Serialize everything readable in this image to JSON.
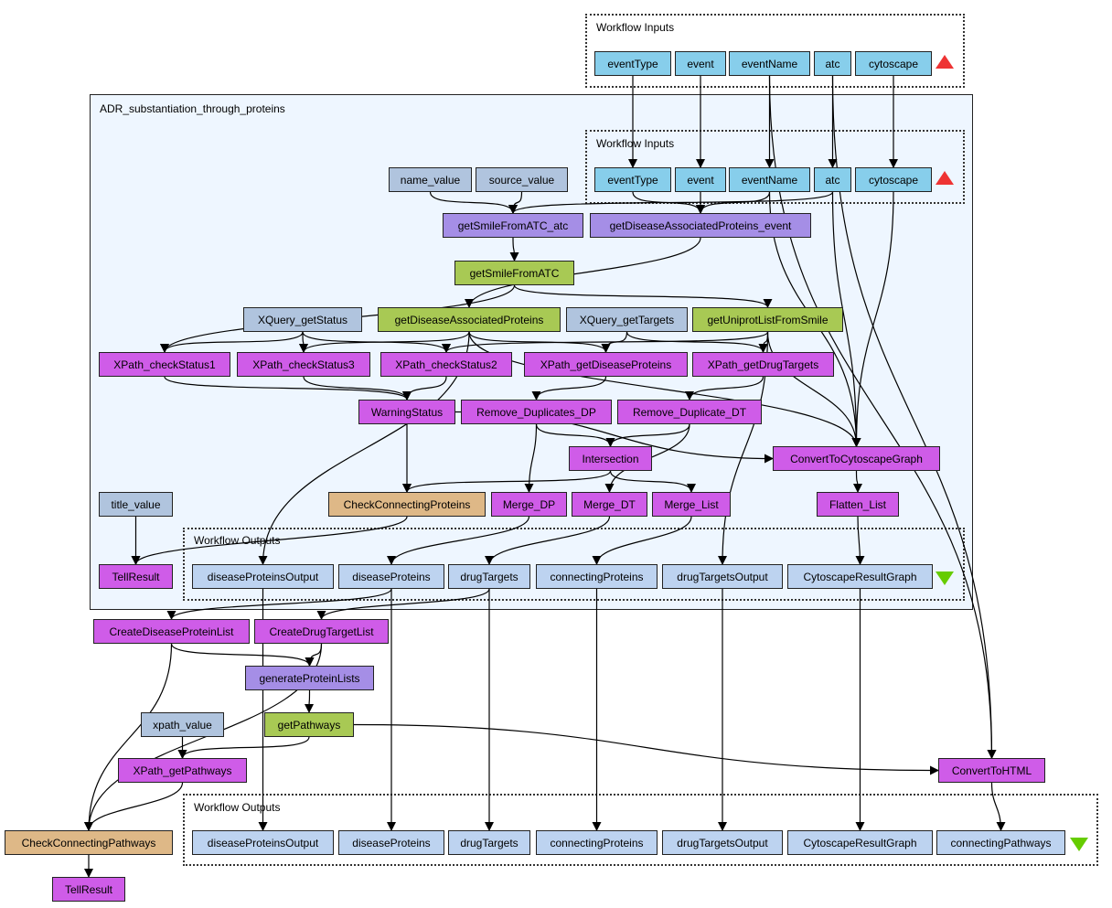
{
  "colors": {
    "processor": "#cf5ce8",
    "beanshell": "#a8c954",
    "purple": "#a58ee6",
    "constant": "#b0c4de",
    "input": "#87ceeb",
    "output": "#bdd3f0",
    "tan": "#deb887",
    "nested_bg": "#eef6ff",
    "input_marker": "#ee3333",
    "output_marker": "#66cc00"
  },
  "groups": {
    "top_inputs": "Workflow Inputs",
    "nested": "ADR_substantiation_through_proteins",
    "inner_inputs": "Workflow Inputs",
    "inner_outputs": "Workflow Outputs",
    "bottom_outputs": "Workflow Outputs"
  },
  "nodes": [
    {
      "id": "t_eventType",
      "label": "eventType",
      "kind": "input"
    },
    {
      "id": "t_event",
      "label": "event",
      "kind": "input"
    },
    {
      "id": "t_eventName",
      "label": "eventName",
      "kind": "input"
    },
    {
      "id": "t_atc",
      "label": "atc",
      "kind": "input"
    },
    {
      "id": "t_cytoscape",
      "label": "cytoscape",
      "kind": "input"
    },
    {
      "id": "i_eventType",
      "label": "eventType",
      "kind": "input"
    },
    {
      "id": "i_event",
      "label": "event",
      "kind": "input"
    },
    {
      "id": "i_eventName",
      "label": "eventName",
      "kind": "input"
    },
    {
      "id": "i_atc",
      "label": "atc",
      "kind": "input"
    },
    {
      "id": "i_cytoscape",
      "label": "cytoscape",
      "kind": "input"
    },
    {
      "id": "name_value",
      "label": "name_value",
      "kind": "constant"
    },
    {
      "id": "source_value",
      "label": "source_value",
      "kind": "constant"
    },
    {
      "id": "gsfa_atc",
      "label": "getSmileFromATC_atc",
      "kind": "purple"
    },
    {
      "id": "gdap_event",
      "label": "getDiseaseAssociatedProteins_event",
      "kind": "purple"
    },
    {
      "id": "gsfa",
      "label": "getSmileFromATC",
      "kind": "beanshell"
    },
    {
      "id": "xq_status",
      "label": "XQuery_getStatus",
      "kind": "constant"
    },
    {
      "id": "gdap",
      "label": "getDiseaseAssociatedProteins",
      "kind": "beanshell"
    },
    {
      "id": "xq_targets",
      "label": "XQuery_getTargets",
      "kind": "constant"
    },
    {
      "id": "guls",
      "label": "getUniprotListFromSmile",
      "kind": "beanshell"
    },
    {
      "id": "cs1",
      "label": "XPath_checkStatus1",
      "kind": "processor"
    },
    {
      "id": "cs3",
      "label": "XPath_checkStatus3",
      "kind": "processor"
    },
    {
      "id": "cs2",
      "label": "XPath_checkStatus2",
      "kind": "processor"
    },
    {
      "id": "xgdp",
      "label": "XPath_getDiseaseProteins",
      "kind": "processor"
    },
    {
      "id": "xgdt",
      "label": "XPath_getDrugTargets",
      "kind": "processor"
    },
    {
      "id": "warn",
      "label": "WarningStatus",
      "kind": "processor"
    },
    {
      "id": "rddp",
      "label": "Remove_Duplicates_DP",
      "kind": "processor"
    },
    {
      "id": "rddt",
      "label": "Remove_Duplicate_DT",
      "kind": "processor"
    },
    {
      "id": "inter",
      "label": "Intersection",
      "kind": "processor"
    },
    {
      "id": "ctcg",
      "label": "ConvertToCytoscapeGraph",
      "kind": "processor"
    },
    {
      "id": "title_value",
      "label": "title_value",
      "kind": "constant"
    },
    {
      "id": "ccp",
      "label": "CheckConnectingProteins",
      "kind": "tan"
    },
    {
      "id": "mdp",
      "label": "Merge_DP",
      "kind": "processor"
    },
    {
      "id": "mdt",
      "label": "Merge_DT",
      "kind": "processor"
    },
    {
      "id": "ml",
      "label": "Merge_List",
      "kind": "processor"
    },
    {
      "id": "fl",
      "label": "Flatten_List",
      "kind": "processor"
    },
    {
      "id": "tell1",
      "label": "TellResult",
      "kind": "processor"
    },
    {
      "id": "io_dpo",
      "label": "diseaseProteinsOutput",
      "kind": "output"
    },
    {
      "id": "io_dp",
      "label": "diseaseProteins",
      "kind": "output"
    },
    {
      "id": "io_dt",
      "label": "drugTargets",
      "kind": "output"
    },
    {
      "id": "io_cp",
      "label": "connectingProteins",
      "kind": "output"
    },
    {
      "id": "io_dto",
      "label": "drugTargetsOutput",
      "kind": "output"
    },
    {
      "id": "io_crg",
      "label": "CytoscapeResultGraph",
      "kind": "output"
    },
    {
      "id": "cdpl",
      "label": "CreateDiseaseProteinList",
      "kind": "processor"
    },
    {
      "id": "cdtl",
      "label": "CreateDrugTargetList",
      "kind": "processor"
    },
    {
      "id": "gpl",
      "label": "generateProteinLists",
      "kind": "purple"
    },
    {
      "id": "xpath_value",
      "label": "xpath_value",
      "kind": "constant"
    },
    {
      "id": "gp",
      "label": "getPathways",
      "kind": "beanshell"
    },
    {
      "id": "xgp",
      "label": "XPath_getPathways",
      "kind": "processor"
    },
    {
      "id": "cth",
      "label": "ConvertToHTML",
      "kind": "processor"
    },
    {
      "id": "ccpw",
      "label": "CheckConnectingPathways",
      "kind": "tan"
    },
    {
      "id": "tell2",
      "label": "TellResult",
      "kind": "processor"
    },
    {
      "id": "o_dpo",
      "label": "diseaseProteinsOutput",
      "kind": "output"
    },
    {
      "id": "o_dp",
      "label": "diseaseProteins",
      "kind": "output"
    },
    {
      "id": "o_dt",
      "label": "drugTargets",
      "kind": "output"
    },
    {
      "id": "o_cp",
      "label": "connectingProteins",
      "kind": "output"
    },
    {
      "id": "o_dto",
      "label": "drugTargetsOutput",
      "kind": "output"
    },
    {
      "id": "o_crg",
      "label": "CytoscapeResultGraph",
      "kind": "output"
    },
    {
      "id": "o_cpw",
      "label": "connectingPathways",
      "kind": "output"
    }
  ],
  "edges": [
    [
      "t_eventType",
      "i_eventType"
    ],
    [
      "t_event",
      "i_event"
    ],
    [
      "t_eventName",
      "i_eventName"
    ],
    [
      "t_atc",
      "i_atc"
    ],
    [
      "t_cytoscape",
      "i_cytoscape"
    ],
    [
      "t_eventName",
      "cth"
    ],
    [
      "t_atc",
      "cth"
    ],
    [
      "name_value",
      "gsfa_atc"
    ],
    [
      "source_value",
      "gsfa_atc"
    ],
    [
      "i_atc",
      "gsfa_atc"
    ],
    [
      "i_eventType",
      "gdap_event"
    ],
    [
      "i_event",
      "gdap_event"
    ],
    [
      "i_eventName",
      "gdap_event"
    ],
    [
      "i_eventName",
      "ctcg"
    ],
    [
      "i_atc",
      "ctcg"
    ],
    [
      "i_cytoscape",
      "ctcg"
    ],
    [
      "gsfa_atc",
      "gsfa"
    ],
    [
      "gdap_event",
      "gdap"
    ],
    [
      "gsfa",
      "cs1"
    ],
    [
      "gsfa",
      "guls"
    ],
    [
      "xq_status",
      "cs1"
    ],
    [
      "xq_status",
      "cs3"
    ],
    [
      "xq_status",
      "cs2"
    ],
    [
      "gdap",
      "cs3"
    ],
    [
      "gdap",
      "xgdp"
    ],
    [
      "gdap",
      "ctcg"
    ],
    [
      "gdap",
      "io_dpo"
    ],
    [
      "xq_targets",
      "xgdp"
    ],
    [
      "xq_targets",
      "xgdt"
    ],
    [
      "guls",
      "cs2"
    ],
    [
      "guls",
      "xgdt"
    ],
    [
      "guls",
      "ctcg"
    ],
    [
      "guls",
      "io_dto"
    ],
    [
      "cs1",
      "warn"
    ],
    [
      "cs3",
      "warn"
    ],
    [
      "cs2",
      "warn"
    ],
    [
      "xgdp",
      "rddp"
    ],
    [
      "xgdt",
      "rddt"
    ],
    [
      "warn",
      "ccp"
    ],
    [
      "warn",
      "ctcg"
    ],
    [
      "rddp",
      "inter"
    ],
    [
      "rddp",
      "mdp"
    ],
    [
      "rddt",
      "inter"
    ],
    [
      "rddt",
      "mdt"
    ],
    [
      "inter",
      "ccp"
    ],
    [
      "inter",
      "ml"
    ],
    [
      "ctcg",
      "fl"
    ],
    [
      "fl",
      "io_crg"
    ],
    [
      "title_value",
      "tell1"
    ],
    [
      "ccp",
      "tell1"
    ],
    [
      "mdp",
      "io_dp"
    ],
    [
      "mdt",
      "io_dt"
    ],
    [
      "ml",
      "io_cp"
    ],
    [
      "io_dpo",
      "o_dpo"
    ],
    [
      "io_dp",
      "cdpl"
    ],
    [
      "io_dp",
      "o_dp"
    ],
    [
      "io_dt",
      "cdtl"
    ],
    [
      "io_dt",
      "o_dt"
    ],
    [
      "io_cp",
      "o_cp"
    ],
    [
      "io_dto",
      "o_dto"
    ],
    [
      "io_crg",
      "o_crg"
    ],
    [
      "cdpl",
      "gpl"
    ],
    [
      "cdpl",
      "ccpw"
    ],
    [
      "cdtl",
      "gpl"
    ],
    [
      "cdtl",
      "ccpw"
    ],
    [
      "gpl",
      "gp"
    ],
    [
      "gp",
      "xgp"
    ],
    [
      "gp",
      "cth"
    ],
    [
      "xpath_value",
      "xgp"
    ],
    [
      "xgp",
      "ccpw"
    ],
    [
      "ccpw",
      "tell2"
    ],
    [
      "cth",
      "o_cpw"
    ]
  ]
}
